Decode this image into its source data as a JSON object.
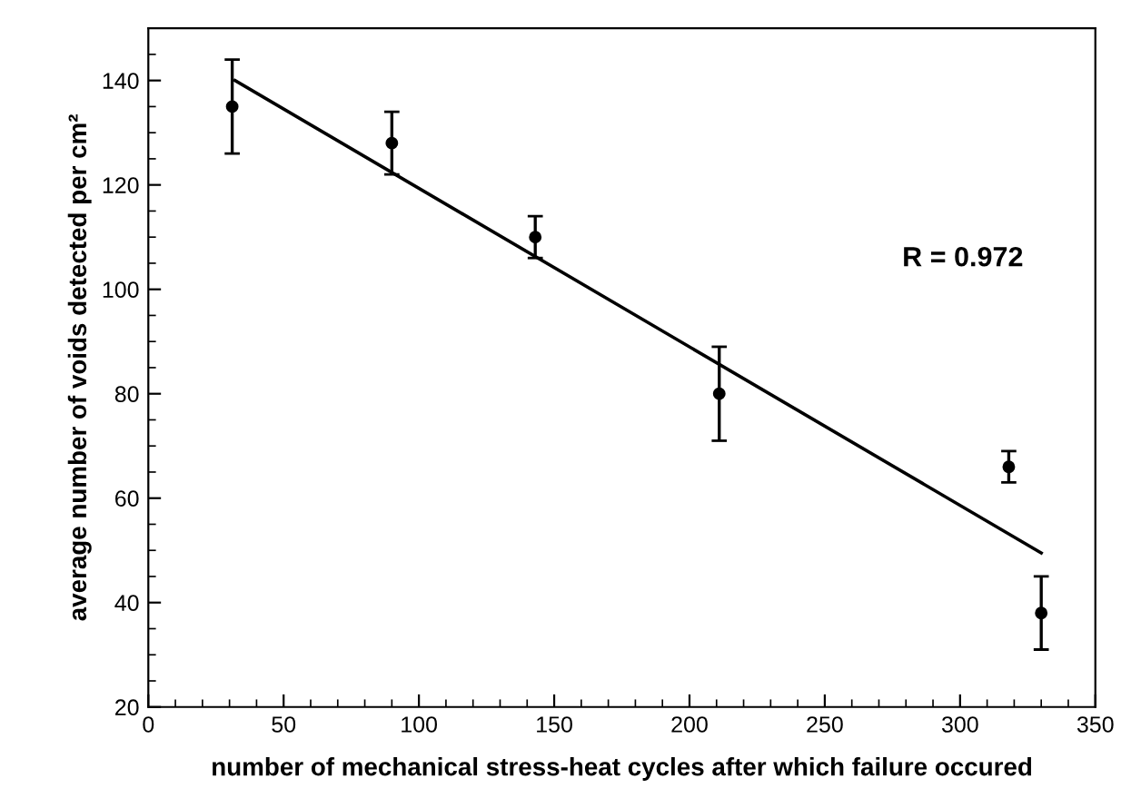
{
  "chart_data": {
    "type": "scatter",
    "xlabel": "number of mechanical stress-heat cycles after which failure occured",
    "ylabel": "average number of voids detected per cm²",
    "series": [
      {
        "type": "scatter",
        "color": "#000000",
        "marker": "circle",
        "x": [
          31,
          90,
          143,
          211,
          318,
          330
        ],
        "values": [
          135,
          128,
          110,
          80,
          66,
          38
        ],
        "errors": [
          [
            126,
            144
          ],
          [
            122,
            134
          ],
          [
            106,
            114
          ],
          [
            71,
            89
          ],
          [
            63,
            69
          ],
          [
            31,
            45
          ]
        ]
      },
      {
        "type": "line",
        "color": "#000000",
        "marker": "none",
        "line_style": "solid",
        "x": [
          32,
          330
        ],
        "values": [
          140,
          49.5
        ]
      }
    ],
    "annotations": [
      "R = 0.972"
    ],
    "xlim": [
      0,
      350
    ],
    "xticks": [
      0,
      50,
      100,
      150,
      200,
      250,
      300,
      350
    ],
    "ylim": [
      20,
      150
    ],
    "yticks": [
      20,
      40,
      60,
      80,
      100,
      120,
      140
    ],
    "grid": false,
    "legend": false
  }
}
